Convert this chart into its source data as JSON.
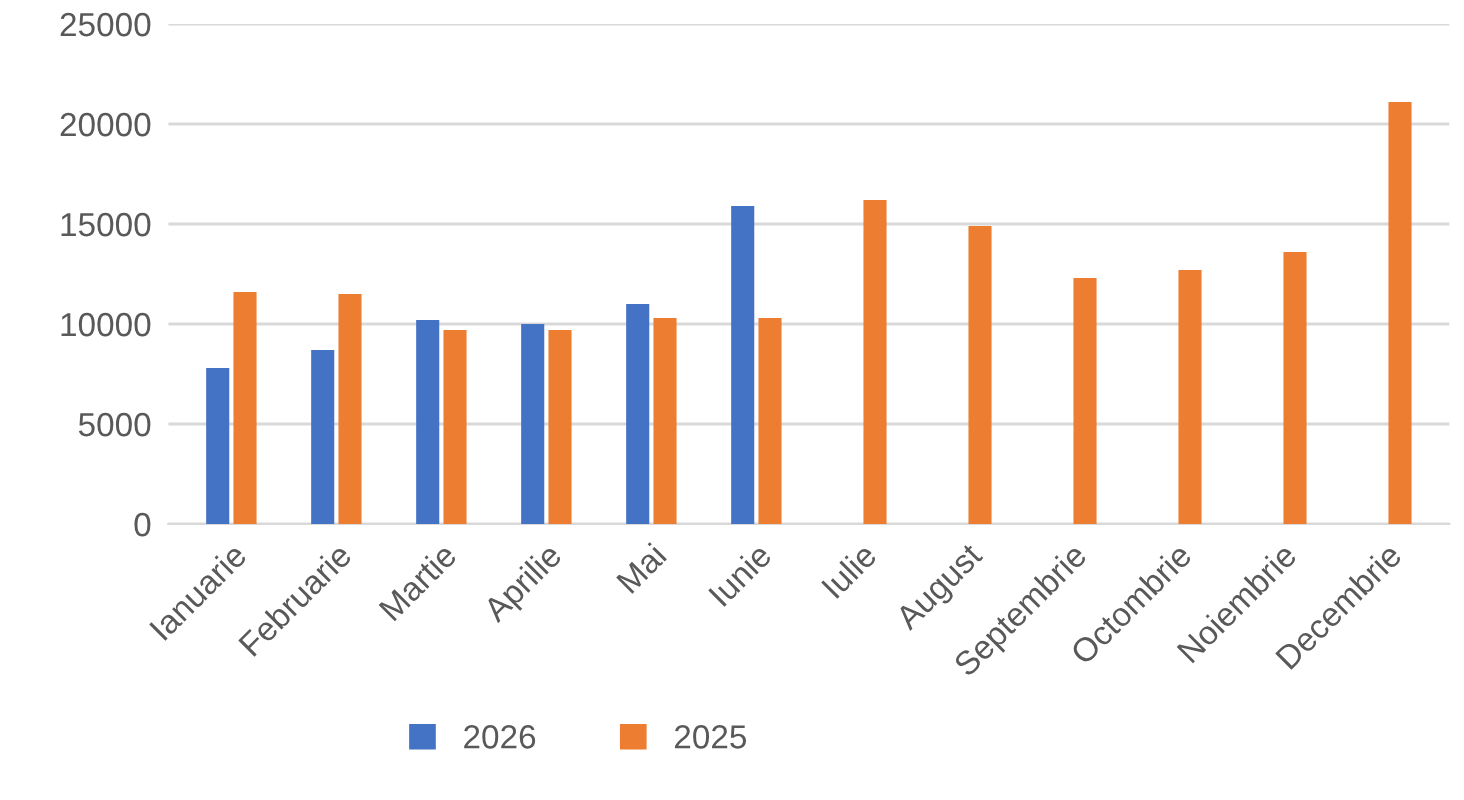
{
  "chart_data": {
    "type": "bar",
    "categories": [
      "Ianuarie",
      "Februarie",
      "Martie",
      "Aprilie",
      "Mai",
      "Iunie",
      "Iulie",
      "August",
      "Septembrie",
      "Octombrie",
      "Noiembrie",
      "Decembrie"
    ],
    "series": [
      {
        "name": "2026",
        "color": "#4472c4",
        "values": [
          7800,
          8700,
          10200,
          10000,
          11000,
          15900,
          null,
          null,
          null,
          null,
          null,
          null
        ]
      },
      {
        "name": "2025",
        "color": "#ed7d31",
        "values": [
          11600,
          11500,
          9700,
          9700,
          10300,
          10300,
          16200,
          14900,
          12300,
          12700,
          13600,
          21100
        ]
      }
    ],
    "ylim": [
      0,
      25000
    ],
    "yticks": [
      0,
      5000,
      10000,
      15000,
      20000,
      25000
    ],
    "grid": "y",
    "legend": "bottom"
  }
}
